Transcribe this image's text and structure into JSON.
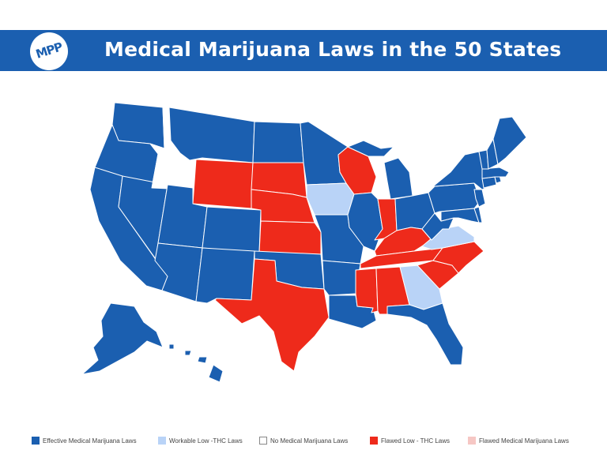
{
  "header": {
    "logo_text": "MPP",
    "title": "Medical Marijuana Laws in the 50 States"
  },
  "colors": {
    "effective": "#1b5fb0",
    "workable": "#b9d3f7",
    "none": "#ffffff",
    "flawed_low": "#ee2a1b",
    "flawed": "#f6c7c4",
    "border": "#ffffff"
  },
  "legend": [
    {
      "label": "Effective Medical Marijuana Laws",
      "category": "effective"
    },
    {
      "label": "Workable Low -THC Laws",
      "category": "workable"
    },
    {
      "label": "No Medical Marijuana Laws",
      "category": "none"
    },
    {
      "label": "Flawed Low - THC Laws",
      "category": "flawed_low"
    },
    {
      "label": "Flawed Medical Marijuana Laws",
      "category": "flawed"
    }
  ],
  "states": {
    "effective": [
      "Washington",
      "Oregon",
      "California",
      "Nevada",
      "Montana",
      "North Dakota",
      "Minnesota",
      "Michigan",
      "Illinois",
      "Missouri",
      "Arkansas",
      "Louisiana",
      "Oklahoma",
      "New Mexico",
      "Arizona",
      "Utah",
      "Colorado",
      "Ohio",
      "West Virginia",
      "Pennsylvania",
      "New York",
      "Vermont",
      "New Hampshire",
      "Maine",
      "Massachusetts",
      "Rhode Island",
      "Connecticut",
      "New Jersey",
      "Delaware",
      "Maryland",
      "Florida",
      "Alaska",
      "Hawaii"
    ],
    "workable": [
      "Iowa",
      "Virginia",
      "Georgia"
    ],
    "none": [
      "Idaho"
    ],
    "flawed_low": [
      "Wyoming",
      "South Dakota",
      "Nebraska",
      "Kansas",
      "Texas",
      "Wisconsin",
      "Indiana",
      "Kentucky",
      "Tennessee",
      "Mississippi",
      "Alabama",
      "South Carolina",
      "North Carolina"
    ],
    "flawed": []
  }
}
